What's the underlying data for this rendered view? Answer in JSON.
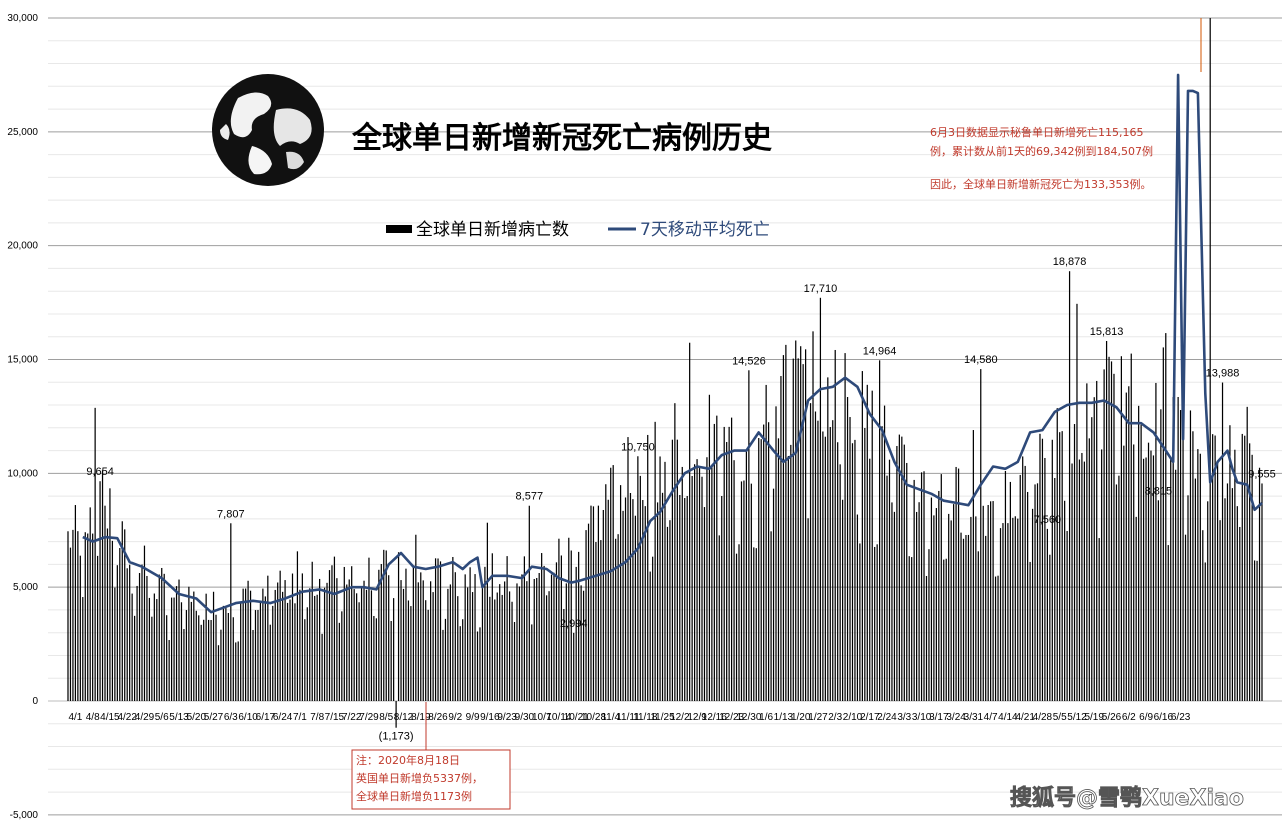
{
  "chart_data": {
    "type": "bar",
    "title": "全球单日新增新冠死亡病例历史",
    "ylim": [
      -5000,
      30000
    ],
    "yticks": [
      -5000,
      0,
      5000,
      10000,
      15000,
      20000,
      25000,
      30000
    ],
    "ytick_labels": [
      "-5,000",
      "0",
      "5,000",
      "10,000",
      "15,000",
      "20,000",
      "25,000",
      "30,000"
    ],
    "grid": true,
    "legend_placement": "top-center",
    "x_tick_labels": [
      "4/1",
      "4/8",
      "4/15",
      "4/22",
      "4/29",
      "5/6",
      "5/13",
      "5/20",
      "5/27",
      "6/3",
      "6/10",
      "6/17",
      "6/24",
      "7/1",
      "7/8",
      "7/15",
      "7/22",
      "7/29",
      "8/5",
      "8/12",
      "8/19",
      "8/26",
      "9/2",
      "9/9",
      "9/16",
      "9/23",
      "9/30",
      "10/7",
      "10/14",
      "10/21",
      "10/28",
      "11/4",
      "11/11",
      "11/18",
      "11/25",
      "12/2",
      "12/9",
      "12/16",
      "12/23",
      "12/30",
      "1/6",
      "1/13",
      "1/20",
      "1/27",
      "2/3",
      "2/10",
      "2/17",
      "2/24",
      "3/3",
      "3/10",
      "3/17",
      "3/24",
      "3/31",
      "4/7",
      "4/14",
      "4/21",
      "4/28",
      "5/5",
      "5/12",
      "5/19",
      "5/26",
      "6/2",
      "6/9",
      "6/16",
      "6/23"
    ],
    "series": [
      {
        "name": "全球单日新增病亡数",
        "kind": "bar",
        "color": "#000000",
        "anchors": [
          [
            0,
            7300
          ],
          [
            5,
            7800
          ],
          [
            12,
            9100
          ],
          [
            25,
            6200
          ],
          [
            35,
            5200
          ],
          [
            45,
            4600
          ],
          [
            55,
            4200
          ],
          [
            63,
            4400
          ],
          [
            70,
            4500
          ],
          [
            80,
            4800
          ],
          [
            95,
            5100
          ],
          [
            105,
            5400
          ],
          [
            115,
            5900
          ],
          [
            125,
            5800
          ],
          [
            135,
            5600
          ],
          [
            145,
            5500
          ],
          [
            155,
            5400
          ],
          [
            165,
            5600
          ],
          [
            175,
            5500
          ],
          [
            185,
            5500
          ],
          [
            195,
            6000
          ],
          [
            205,
            6800
          ],
          [
            212,
            7800
          ],
          [
            220,
            9300
          ],
          [
            230,
            10200
          ],
          [
            240,
            10500
          ],
          [
            250,
            11000
          ],
          [
            260,
            11500
          ],
          [
            270,
            10800
          ],
          [
            280,
            11200
          ],
          [
            290,
            13800
          ],
          [
            300,
            14200
          ],
          [
            310,
            14000
          ],
          [
            320,
            12800
          ],
          [
            330,
            11500
          ],
          [
            340,
            9600
          ],
          [
            350,
            9200
          ],
          [
            360,
            8900
          ],
          [
            370,
            8600
          ],
          [
            380,
            8700
          ],
          [
            390,
            9800
          ],
          [
            400,
            11000
          ],
          [
            410,
            12500
          ],
          [
            420,
            13100
          ],
          [
            430,
            13200
          ],
          [
            440,
            12500
          ],
          [
            450,
            12200
          ],
          [
            455,
            11000
          ],
          [
            460,
            10600
          ],
          [
            470,
            10500
          ],
          [
            478,
            10200
          ],
          [
            484,
            9400
          ]
        ],
        "labeled_points": [
          {
            "i": 13,
            "value": 9654,
            "label": "9,654"
          },
          {
            "i": 66,
            "value": 7807,
            "label": "7,807"
          },
          {
            "i": 133,
            "value": -1173,
            "label": "(1,173)"
          },
          {
            "i": 187,
            "value": 8577,
            "label": "8,577"
          },
          {
            "i": 205,
            "value": 2994,
            "label": "2,994"
          },
          {
            "i": 231,
            "value": 10750,
            "label": "10,750"
          },
          {
            "i": 276,
            "value": 14526,
            "label": "14,526"
          },
          {
            "i": 305,
            "value": 17710,
            "label": "17,710"
          },
          {
            "i": 329,
            "value": 14964,
            "label": "14,964"
          },
          {
            "i": 370,
            "value": 14580,
            "label": "14,580"
          },
          {
            "i": 397,
            "value": 7560,
            "label": "7,560"
          },
          {
            "i": 406,
            "value": 18878,
            "label": "18,878"
          },
          {
            "i": 421,
            "value": 15813,
            "label": "15,813"
          },
          {
            "i": 442,
            "value": 8815,
            "label": "8,815"
          },
          {
            "i": 463,
            "value": 133353,
            "label": ""
          },
          {
            "i": 468,
            "value": 13988,
            "label": "13,988"
          },
          {
            "i": 484,
            "value": 9555,
            "label": "9,555"
          }
        ]
      },
      {
        "name": "7天移动平均死亡",
        "kind": "line",
        "color": "#2e4a7a",
        "anchors": [
          [
            6,
            7200
          ],
          [
            10,
            7000
          ],
          [
            15,
            7200
          ],
          [
            20,
            7150
          ],
          [
            25,
            6100
          ],
          [
            30,
            5900
          ],
          [
            38,
            5400
          ],
          [
            45,
            4700
          ],
          [
            52,
            4500
          ],
          [
            58,
            3900
          ],
          [
            63,
            4100
          ],
          [
            68,
            4300
          ],
          [
            75,
            4400
          ],
          [
            82,
            4300
          ],
          [
            88,
            4500
          ],
          [
            95,
            4800
          ],
          [
            102,
            4900
          ],
          [
            108,
            4700
          ],
          [
            115,
            5000
          ],
          [
            120,
            5000
          ],
          [
            125,
            4900
          ],
          [
            130,
            6000
          ],
          [
            135,
            6500
          ],
          [
            140,
            5900
          ],
          [
            145,
            5800
          ],
          [
            150,
            5900
          ],
          [
            156,
            6100
          ],
          [
            160,
            5800
          ],
          [
            163,
            6100
          ],
          [
            166,
            6300
          ],
          [
            168,
            5000
          ],
          [
            172,
            5500
          ],
          [
            178,
            5500
          ],
          [
            184,
            5400
          ],
          [
            188,
            5900
          ],
          [
            194,
            5800
          ],
          [
            199,
            5400
          ],
          [
            204,
            5200
          ],
          [
            208,
            5300
          ],
          [
            214,
            5500
          ],
          [
            220,
            5700
          ],
          [
            226,
            6100
          ],
          [
            231,
            6700
          ],
          [
            236,
            7900
          ],
          [
            240,
            8300
          ],
          [
            245,
            9200
          ],
          [
            250,
            10000
          ],
          [
            255,
            10300
          ],
          [
            260,
            10200
          ],
          [
            265,
            10800
          ],
          [
            270,
            11000
          ],
          [
            275,
            11000
          ],
          [
            280,
            11800
          ],
          [
            286,
            11000
          ],
          [
            290,
            10500
          ],
          [
            295,
            10900
          ],
          [
            300,
            13200
          ],
          [
            305,
            13700
          ],
          [
            310,
            13800
          ],
          [
            315,
            14200
          ],
          [
            320,
            13800
          ],
          [
            325,
            12600
          ],
          [
            330,
            11900
          ],
          [
            335,
            10500
          ],
          [
            340,
            9500
          ],
          [
            345,
            9300
          ],
          [
            350,
            9100
          ],
          [
            355,
            8800
          ],
          [
            360,
            8700
          ],
          [
            365,
            8600
          ],
          [
            370,
            9500
          ],
          [
            375,
            10300
          ],
          [
            380,
            10200
          ],
          [
            385,
            10500
          ],
          [
            390,
            11800
          ],
          [
            395,
            11900
          ],
          [
            400,
            12700
          ],
          [
            405,
            13000
          ],
          [
            410,
            13100
          ],
          [
            415,
            13100
          ],
          [
            420,
            13200
          ],
          [
            425,
            12900
          ],
          [
            430,
            12200
          ],
          [
            435,
            12200
          ],
          [
            440,
            11800
          ],
          [
            445,
            11000
          ],
          [
            448,
            10500
          ],
          [
            450,
            27500
          ],
          [
            452,
            11500
          ],
          [
            454,
            26800
          ],
          [
            456,
            26800
          ],
          [
            458,
            26700
          ],
          [
            461,
            13500
          ],
          [
            463,
            9600
          ],
          [
            466,
            10500
          ],
          [
            470,
            11000
          ],
          [
            472,
            10200
          ],
          [
            474,
            9600
          ],
          [
            478,
            9500
          ],
          [
            481,
            8400
          ],
          [
            484,
            8700
          ]
        ]
      }
    ]
  },
  "legend": {
    "bar_label": "全球单日新增病亡数",
    "line_label": "7天移动平均死亡",
    "bar_color": "#000000",
    "line_color": "#2e4a7a"
  },
  "annotations": {
    "peru_note_line1": "6月3日数据显示秘鲁单日新增死亡115,165",
    "peru_note_line2": "例，累计数从前1天的69,342例到184,507例",
    "peru_note_line3": "因此，全球单日新增新冠死亡为133,353例。",
    "uk_note_line1": "注：2020年8月18日",
    "uk_note_line2": "英国单日新增负5337例，",
    "uk_note_line3": "全球单日新增负1173例",
    "note_color": "#c0392b"
  },
  "watermark": "搜狐号@雪鹗XueXiao",
  "globe_icon": "globe-icon"
}
